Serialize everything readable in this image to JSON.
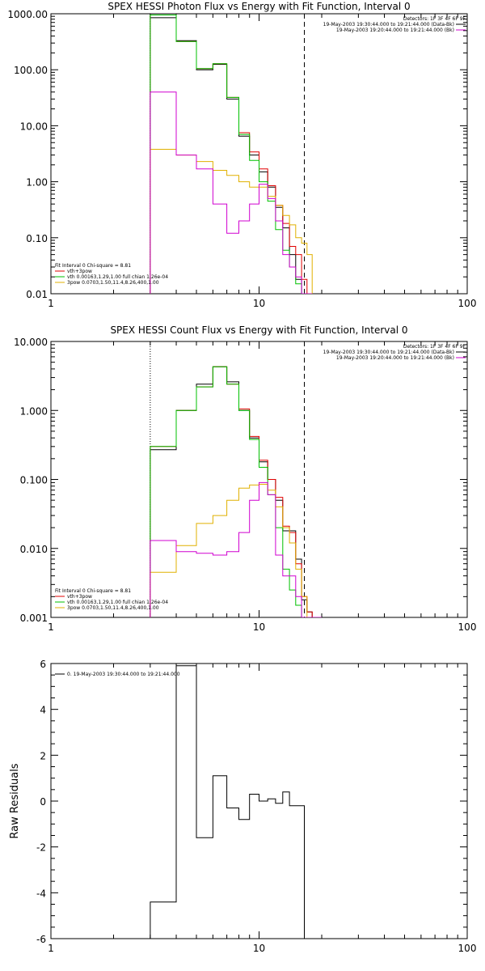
{
  "chart_data": [
    {
      "type": "line",
      "title": "SPEX HESSI Photon Flux vs Energy with Fit Function, Interval 0",
      "xlabel": "",
      "ylabel": "",
      "xscale": "log",
      "yscale": "log",
      "xlim": [
        1,
        100
      ],
      "ylim": [
        0.01,
        1000
      ],
      "xticks": [
        "1",
        "10",
        "100"
      ],
      "yticks": [
        "1000.00",
        "100.00",
        "10.00",
        "1.00",
        "0.10",
        "0.01"
      ],
      "grid": false,
      "vlines": [
        {
          "x": 3.0,
          "style": "dotted",
          "color": "#000000"
        },
        {
          "x": 16.5,
          "style": "dashed",
          "color": "#000000"
        }
      ],
      "legend_top_right": [
        {
          "text": "Detectors: 1F 3F 4F 6F 9F",
          "color": ""
        },
        {
          "text": "19-May-2003 19:30:44.000 to 19:21:44.000 (Data-Bk)",
          "color": "#000000"
        },
        {
          "text": "19-May-2003 19:20:44.000 to 19:21:44.000 (Bk)",
          "color": "#d000d0"
        }
      ],
      "legend_bottom_left": [
        {
          "text": "Fit Interval 0   Chi-square = 8.81",
          "color": ""
        },
        {
          "text": "vth+3pow",
          "color": "#e00000"
        },
        {
          "text": "vth 0.00163,1.29,1.00  full chian 1.26e-04",
          "color": "#00c000"
        },
        {
          "text": "3pow 0.0703,1.50,11.4,8.26,400,1.00",
          "color": "#e0b000"
        }
      ],
      "bin_edges": [
        3.0,
        4.0,
        5.0,
        6.0,
        7.0,
        8.0,
        9.0,
        10.0,
        11.0,
        12.0,
        13.0,
        14.0,
        15.0,
        16.0,
        17.0,
        18.0
      ],
      "series": [
        {
          "name": "Data-Bk",
          "color": "#000000",
          "values": [
            850,
            330,
            100,
            125,
            30,
            6.5,
            3.0,
            1.5,
            0.8,
            0.35,
            0.15,
            0.05,
            0.018,
            0.01,
            0.01
          ]
        },
        {
          "name": "vth+3pow",
          "color": "#e00000",
          "values": [
            950,
            320,
            105,
            128,
            32,
            7.5,
            3.4,
            1.7,
            0.85,
            0.38,
            0.18,
            0.07,
            0.05,
            0.018,
            0.01
          ]
        },
        {
          "name": "vth",
          "color": "#00c000",
          "values": [
            950,
            320,
            105,
            128,
            32,
            7.0,
            2.4,
            1.0,
            0.45,
            0.14,
            0.06,
            0.03,
            0.015,
            0.008,
            0.005
          ]
        },
        {
          "name": "3pow",
          "color": "#e0b000",
          "values": [
            3.8,
            3.0,
            2.3,
            1.6,
            1.3,
            1.0,
            0.8,
            0.8,
            0.55,
            0.38,
            0.25,
            0.17,
            0.1,
            0.08,
            0.05
          ]
        },
        {
          "name": "Bk",
          "color": "#d000d0",
          "values": [
            40,
            3.0,
            1.7,
            0.4,
            0.12,
            0.2,
            0.4,
            0.9,
            0.5,
            0.2,
            0.05,
            0.03,
            0.02,
            0.01,
            0.008
          ]
        }
      ]
    },
    {
      "type": "line",
      "title": "SPEX HESSI Count Flux vs Energy with Fit Function, Interval 0",
      "xlabel": "",
      "ylabel": "",
      "xscale": "log",
      "yscale": "log",
      "xlim": [
        1,
        100
      ],
      "ylim": [
        0.001,
        10
      ],
      "xticks": [
        "1",
        "10",
        "100"
      ],
      "yticks": [
        "10.000",
        "1.000",
        "0.100",
        "0.010",
        "0.001"
      ],
      "grid": false,
      "vlines": [
        {
          "x": 3.0,
          "style": "dotted",
          "color": "#000000"
        },
        {
          "x": 16.5,
          "style": "dashed",
          "color": "#000000"
        }
      ],
      "legend_top_right": [
        {
          "text": "Detectors: 1F 3F 4F 6F 9F",
          "color": ""
        },
        {
          "text": "19-May-2003 19:30:44.000 to 19:21:44.000 (Data-Bk)",
          "color": "#000000"
        },
        {
          "text": "19-May-2003 19:20:44.000 to 19:21:44.000 (Bk)",
          "color": "#d000d0"
        }
      ],
      "legend_bottom_left": [
        {
          "text": "Fit Interval 0   Chi-square = 8.81",
          "color": ""
        },
        {
          "text": "vth+3pow",
          "color": "#e00000"
        },
        {
          "text": "vth 0.00163,1.29,1.00  full chian 1.26e-04",
          "color": "#00c000"
        },
        {
          "text": "3pow 0.0703,1.50,11.4,8.26,400,1.00",
          "color": "#e0b000"
        }
      ],
      "bin_edges": [
        3.0,
        4.0,
        5.0,
        6.0,
        7.0,
        8.0,
        9.0,
        10.0,
        11.0,
        12.0,
        13.0,
        14.0,
        15.0,
        16.0,
        17.0,
        18.0,
        19.0,
        20.0
      ],
      "series": [
        {
          "name": "Data-Bk",
          "color": "#000000",
          "values": [
            0.27,
            1.0,
            2.4,
            4.3,
            2.6,
            1.0,
            0.4,
            0.18,
            0.1,
            0.05,
            0.018,
            0.018,
            0.007,
            0.0018,
            0.0012,
            0.001,
            0.001
          ]
        },
        {
          "name": "vth+3pow",
          "color": "#e00000",
          "values": [
            0.3,
            1.0,
            2.2,
            4.3,
            2.4,
            1.05,
            0.42,
            0.19,
            0.1,
            0.055,
            0.021,
            0.017,
            0.006,
            0.002,
            0.0012,
            0.001,
            0.001
          ]
        },
        {
          "name": "vth",
          "color": "#00c000",
          "values": [
            0.3,
            1.0,
            2.2,
            4.3,
            2.4,
            1.0,
            0.38,
            0.15,
            0.06,
            0.02,
            0.005,
            0.0025,
            0.0015,
            0.001,
            0.001,
            0.001,
            0.001
          ]
        },
        {
          "name": "3pow",
          "color": "#e0b000",
          "values": [
            0.0045,
            0.011,
            0.023,
            0.03,
            0.05,
            0.075,
            0.083,
            0.085,
            0.07,
            0.04,
            0.02,
            0.012,
            0.005,
            0.002,
            0.001,
            0.001,
            0.001
          ]
        },
        {
          "name": "Bk",
          "color": "#d000d0",
          "values": [
            0.013,
            0.009,
            0.0085,
            0.008,
            0.009,
            0.017,
            0.05,
            0.09,
            0.06,
            0.008,
            0.004,
            0.004,
            0.002,
            0.001,
            0.001,
            0.001,
            0.001
          ]
        }
      ]
    },
    {
      "type": "line",
      "title": "",
      "xlabel": "",
      "ylabel": "Raw Residuals",
      "xscale": "log",
      "yscale": "linear",
      "xlim": [
        1,
        100
      ],
      "ylim": [
        -6,
        6
      ],
      "xticks": [
        "1",
        "10",
        "100"
      ],
      "yticks": [
        "6",
        "4",
        "2",
        "0",
        "-2",
        "-4",
        "-6"
      ],
      "grid": false,
      "legend": [
        {
          "text": "0. 19-May-2003 19:30:44.000 to 19:21:44.000",
          "color": "#000000"
        }
      ],
      "bin_edges": [
        3.0,
        4.0,
        5.0,
        6.0,
        7.0,
        8.0,
        9.0,
        10.0,
        11.0,
        12.0,
        13.0,
        14.0,
        15.0,
        16.5
      ],
      "series": [
        {
          "name": "",
          "color": "#000000",
          "values": [
            -4.4,
            5.9,
            -1.6,
            1.1,
            -0.3,
            -0.8,
            0.3,
            0.0,
            0.1,
            -0.1,
            0.4,
            -0.2,
            -0.2
          ]
        }
      ]
    }
  ]
}
